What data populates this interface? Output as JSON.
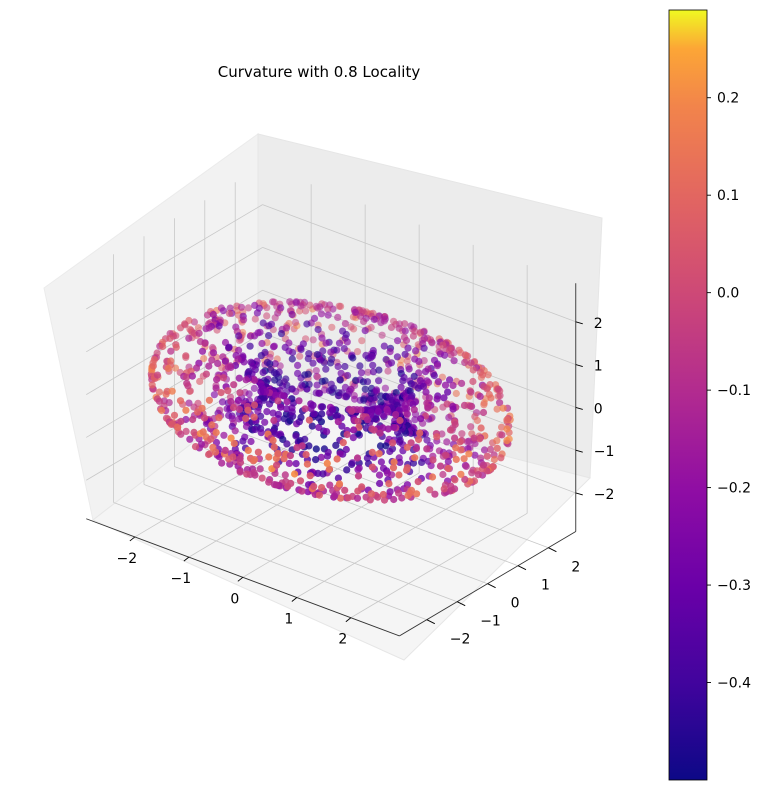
{
  "chart_data": {
    "type": "scatter",
    "projection": "3d",
    "title": "Curvature with 0.8 Locality",
    "xlabel": "",
    "ylabel": "",
    "zlabel": "",
    "x_ticks": [
      "−2",
      "−1",
      "0",
      "1",
      "2"
    ],
    "y_ticks": [
      "−2",
      "−1",
      "0",
      "1",
      "2"
    ],
    "z_ticks": [
      "−2",
      "−1",
      "0",
      "1",
      "2"
    ],
    "xlim": [
      -2.9,
      2.9
    ],
    "ylim": [
      -2.9,
      2.9
    ],
    "zlim": [
      -2.9,
      2.9
    ],
    "grid": true,
    "surface": "torus",
    "torus_major_radius": 2.0,
    "torus_minor_radius": 0.9,
    "point_count": 1500,
    "colormap": "plasma",
    "colorbar": {
      "ticks": [
        "0.2",
        "0.1",
        "0.0",
        "−0.1",
        "−0.2",
        "−0.3",
        "−0.4"
      ],
      "tick_values": [
        0.2,
        0.1,
        0.0,
        -0.1,
        -0.2,
        -0.3,
        -0.4
      ],
      "range": [
        -0.5,
        0.29
      ]
    }
  }
}
